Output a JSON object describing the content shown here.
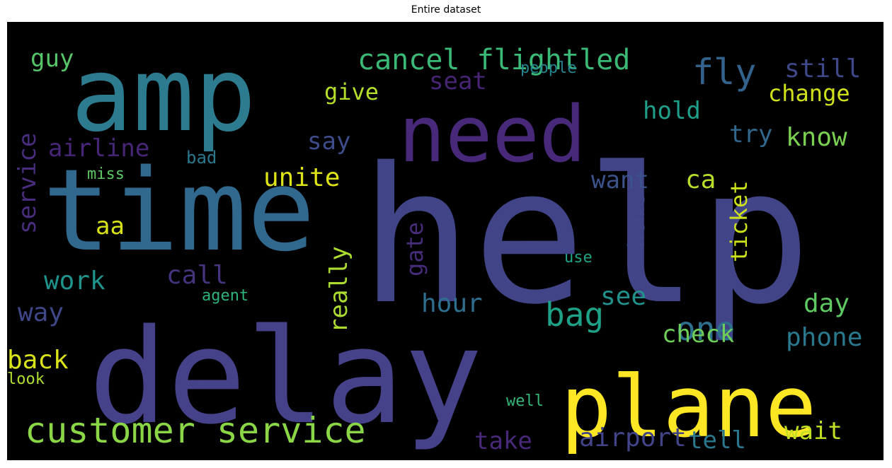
{
  "title": "Entire dataset",
  "chart_data": {
    "type": "wordcloud",
    "title": "Entire dataset",
    "background": "#000000",
    "words": [
      {
        "text": "help",
        "color": "#414487",
        "orientation": "horizontal"
      },
      {
        "text": "time",
        "color": "#31688e",
        "orientation": "horizontal"
      },
      {
        "text": "delay",
        "color": "#46428a",
        "orientation": "horizontal"
      },
      {
        "text": "amp",
        "color": "#2c7b8e",
        "orientation": "horizontal"
      },
      {
        "text": "need",
        "color": "#482979",
        "orientation": "horizontal"
      },
      {
        "text": "plane",
        "color": "#fde725",
        "orientation": "horizontal"
      },
      {
        "text": "customer service",
        "color": "#8bd646",
        "orientation": "horizontal"
      },
      {
        "text": "cancel flightled",
        "color": "#3aba76",
        "orientation": "horizontal"
      },
      {
        "text": "fly",
        "color": "#33638d",
        "orientation": "horizontal"
      },
      {
        "text": "bag",
        "color": "#1fa187",
        "orientation": "horizontal"
      },
      {
        "text": "one",
        "color": "#2d708e",
        "orientation": "horizontal"
      },
      {
        "text": "guy",
        "color": "#55c568",
        "orientation": "horizontal"
      },
      {
        "text": "still",
        "color": "#3f4889",
        "orientation": "horizontal"
      },
      {
        "text": "seat",
        "color": "#482475",
        "orientation": "horizontal"
      },
      {
        "text": "people",
        "color": "#25858e",
        "orientation": "horizontal"
      },
      {
        "text": "give",
        "color": "#b5de2b",
        "orientation": "horizontal"
      },
      {
        "text": "change",
        "color": "#d0e11c",
        "orientation": "horizontal"
      },
      {
        "text": "hold",
        "color": "#1f9e89",
        "orientation": "horizontal"
      },
      {
        "text": "service",
        "color": "#472d7b",
        "orientation": "vertical"
      },
      {
        "text": "airline",
        "color": "#482677",
        "orientation": "horizontal"
      },
      {
        "text": "say",
        "color": "#3e4c8a",
        "orientation": "horizontal"
      },
      {
        "text": "try",
        "color": "#31688e",
        "orientation": "horizontal"
      },
      {
        "text": "know",
        "color": "#7ad151",
        "orientation": "horizontal"
      },
      {
        "text": "bad",
        "color": "#2a778e",
        "orientation": "horizontal"
      },
      {
        "text": "miss",
        "color": "#5ec962",
        "orientation": "horizontal"
      },
      {
        "text": "unite",
        "color": "#dde318",
        "orientation": "horizontal"
      },
      {
        "text": "want",
        "color": "#3b528b",
        "orientation": "horizontal"
      },
      {
        "text": "ca",
        "color": "#b8de29",
        "orientation": "horizontal"
      },
      {
        "text": "aa",
        "color": "#d8e219",
        "orientation": "horizontal"
      },
      {
        "text": "home",
        "color": "#404688",
        "orientation": "vertical"
      },
      {
        "text": "ticket",
        "color": "#cde11d",
        "orientation": "vertical"
      },
      {
        "text": "gate",
        "color": "#472c7a",
        "orientation": "vertical"
      },
      {
        "text": "use",
        "color": "#20a386",
        "orientation": "horizontal"
      },
      {
        "text": "work",
        "color": "#1f948c",
        "orientation": "horizontal"
      },
      {
        "text": "call",
        "color": "#46337e",
        "orientation": "horizontal"
      },
      {
        "text": "really",
        "color": "#addc30",
        "orientation": "vertical"
      },
      {
        "text": "hour",
        "color": "#2e6e8e",
        "orientation": "horizontal"
      },
      {
        "text": "see",
        "color": "#21918c",
        "orientation": "horizontal"
      },
      {
        "text": "day",
        "color": "#5ec962",
        "orientation": "horizontal"
      },
      {
        "text": "way",
        "color": "#3f4788",
        "orientation": "horizontal"
      },
      {
        "text": "agent",
        "color": "#2fb47c",
        "orientation": "horizontal"
      },
      {
        "text": "check",
        "color": "#6ece58",
        "orientation": "horizontal"
      },
      {
        "text": "phone",
        "color": "#2a788e",
        "orientation": "horizontal"
      },
      {
        "text": "back",
        "color": "#dae319",
        "orientation": "horizontal"
      },
      {
        "text": "look",
        "color": "#b0dd2f",
        "orientation": "horizontal"
      },
      {
        "text": "well",
        "color": "#35b779",
        "orientation": "horizontal"
      },
      {
        "text": "take",
        "color": "#482878",
        "orientation": "horizontal"
      },
      {
        "text": "airport",
        "color": "#414487",
        "orientation": "horizontal"
      },
      {
        "text": "tell",
        "color": "#2a788e",
        "orientation": "horizontal"
      },
      {
        "text": "wait",
        "color": "#c2df23",
        "orientation": "horizontal"
      }
    ]
  }
}
